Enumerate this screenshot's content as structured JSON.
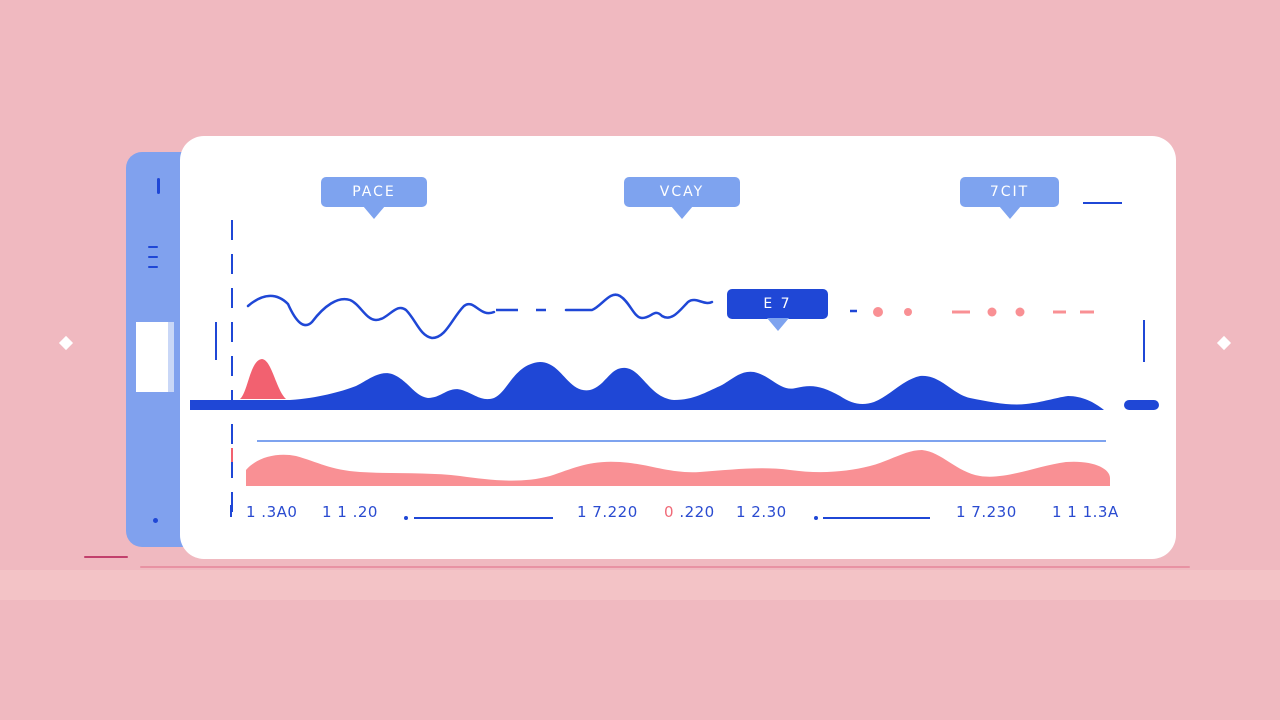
{
  "colors": {
    "background": "#f0b9c0",
    "card": "#ffffff",
    "blue_primary": "#1f47d6",
    "blue_light": "#7ea3ef",
    "pink_wave": "#f99094",
    "red_peak": "#f26170"
  },
  "bubbles": {
    "left": "PACE",
    "middle": "VCAY",
    "right": "7CIT",
    "marker": "E 7"
  },
  "axis": {
    "labels": [
      "1 .3A0",
      "1 1 .20",
      "1 7.220",
      "0 .220",
      "1 2.30",
      "1 7.230",
      "1 1 1.3A"
    ]
  },
  "icons": {
    "sparkle_left": "sparkle-icon",
    "sparkle_right": "sparkle-icon",
    "menu": "hamburger-icon"
  }
}
